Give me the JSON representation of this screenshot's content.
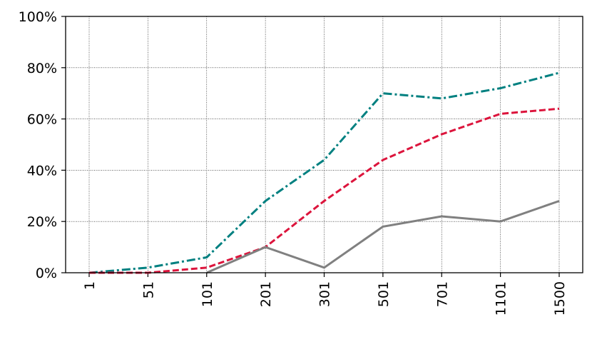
{
  "chart_data": {
    "type": "line",
    "categories": [
      "1",
      "51",
      "101",
      "201",
      "301",
      "501",
      "701",
      "1101",
      "1500"
    ],
    "series": [
      {
        "color": "#008080",
        "style": "dashdot",
        "values": [
          0,
          2,
          6,
          28,
          44,
          70,
          68,
          72,
          78
        ]
      },
      {
        "color": "#dc143c",
        "style": "dashed",
        "values": [
          0,
          0,
          2,
          10,
          28,
          44,
          54,
          62,
          64
        ]
      },
      {
        "color": "#808080",
        "style": "solid",
        "values": [
          null,
          null,
          0,
          10,
          2,
          18,
          22,
          20,
          28
        ]
      }
    ],
    "ylim": [
      0,
      100
    ],
    "yticks": [
      {
        "value": 0,
        "label": "0%"
      },
      {
        "value": 20,
        "label": "20%"
      },
      {
        "value": 40,
        "label": "40%"
      },
      {
        "value": 60,
        "label": "60%"
      },
      {
        "value": 80,
        "label": "80%"
      },
      {
        "value": 100,
        "label": "100%"
      }
    ],
    "grid": true
  }
}
